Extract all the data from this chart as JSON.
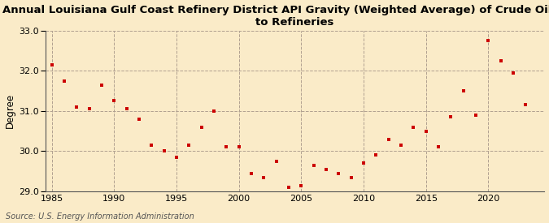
{
  "title": "Annual Louisiana Gulf Coast Refinery District API Gravity (Weighted Average) of Crude Oil Input\nto Refineries",
  "xlabel": "",
  "ylabel": "Degree",
  "source": "Source: U.S. Energy Information Administration",
  "background_color": "#faebc8",
  "plot_bg_color": "#faebc8",
  "marker_color": "#cc0000",
  "years": [
    1985,
    1986,
    1987,
    1988,
    1989,
    1990,
    1991,
    1992,
    1993,
    1994,
    1995,
    1996,
    1997,
    1998,
    1999,
    2000,
    2001,
    2002,
    2003,
    2004,
    2005,
    2006,
    2007,
    2008,
    2009,
    2010,
    2011,
    2012,
    2013,
    2014,
    2015,
    2016,
    2017,
    2018,
    2019,
    2020,
    2021,
    2022,
    2023
  ],
  "values": [
    32.15,
    31.75,
    31.1,
    31.05,
    31.65,
    31.25,
    31.05,
    30.8,
    30.15,
    30.0,
    29.85,
    30.15,
    30.6,
    31.0,
    30.1,
    30.1,
    29.45,
    29.35,
    29.75,
    29.1,
    29.15,
    29.65,
    29.55,
    29.45,
    29.35,
    29.7,
    29.9,
    30.3,
    30.15,
    30.6,
    30.5,
    30.1,
    30.85,
    31.5,
    30.9,
    32.75,
    32.25,
    31.95,
    31.15
  ],
  "ylim": [
    29.0,
    33.0
  ],
  "xlim": [
    1984.5,
    2024.5
  ],
  "yticks": [
    29.0,
    30.0,
    31.0,
    32.0,
    33.0
  ],
  "xticks": [
    1985,
    1990,
    1995,
    2000,
    2005,
    2010,
    2015,
    2020
  ],
  "grid_color": "#b0a090",
  "title_fontsize": 9.5,
  "label_fontsize": 8.5,
  "tick_fontsize": 8,
  "source_fontsize": 7
}
